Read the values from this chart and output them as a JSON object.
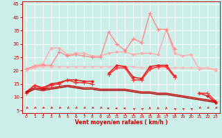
{
  "xlabel": "Vent moyen/en rafales ( km/h )",
  "background_color": "#cceee8",
  "grid_color": "#ffffff",
  "xlim": [
    -0.5,
    23.5
  ],
  "ylim": [
    4,
    46
  ],
  "yticks": [
    5,
    10,
    15,
    20,
    25,
    30,
    35,
    40,
    45
  ],
  "xticks": [
    0,
    1,
    2,
    3,
    4,
    5,
    6,
    7,
    8,
    9,
    10,
    11,
    12,
    13,
    14,
    15,
    16,
    17,
    18,
    19,
    20,
    21,
    22,
    23
  ],
  "series": [
    {
      "name": "rafales_light",
      "color": "#ffaaaa",
      "lw": 1.0,
      "marker": "D",
      "ms": 2.0,
      "y": [
        20.5,
        22.0,
        22.5,
        28.5,
        28.5,
        26.0,
        26.5,
        26.5,
        25.5,
        25.5,
        26.5,
        27.0,
        27.0,
        26.0,
        26.5,
        26.5,
        26.0,
        35.5,
        26.5,
        25.5,
        26.0,
        20.5,
        21.0,
        20.0
      ]
    },
    {
      "name": "rafales_medium",
      "color": "#ff8888",
      "lw": 1.0,
      "marker": "+",
      "ms": 4.0,
      "y": [
        20.5,
        21.5,
        22.0,
        22.0,
        27.0,
        25.5,
        26.0,
        25.5,
        25.0,
        25.0,
        34.5,
        30.0,
        27.5,
        32.0,
        30.5,
        41.5,
        35.5,
        35.5,
        28.0,
        null,
        null,
        null,
        null,
        null
      ]
    },
    {
      "name": "moyen_flat_light",
      "color": "#ffbbbb",
      "lw": 1.0,
      "marker": "D",
      "ms": 2.0,
      "y": [
        20.0,
        21.0,
        21.5,
        21.5,
        21.5,
        21.5,
        21.5,
        21.5,
        21.5,
        21.5,
        21.5,
        21.5,
        21.5,
        21.5,
        21.0,
        21.0,
        21.0,
        21.0,
        21.0,
        21.0,
        21.0,
        21.0,
        21.0,
        20.5
      ]
    },
    {
      "name": "rafales_dark",
      "color": "#dd2222",
      "lw": 1.2,
      "marker": "D",
      "ms": 2.0,
      "y": [
        12.0,
        14.5,
        13.5,
        15.0,
        15.5,
        16.5,
        16.5,
        16.0,
        16.0,
        null,
        19.0,
        22.0,
        21.5,
        17.5,
        17.0,
        21.5,
        22.0,
        22.0,
        18.0,
        null,
        null,
        11.5,
        10.5,
        8.0
      ]
    },
    {
      "name": "moyen_dark",
      "color": "#ff3333",
      "lw": 1.2,
      "marker": "+",
      "ms": 4.0,
      "y": [
        11.5,
        14.5,
        13.0,
        14.5,
        15.0,
        16.5,
        15.5,
        15.5,
        15.0,
        null,
        18.5,
        21.0,
        21.0,
        16.5,
        16.5,
        20.5,
        21.5,
        21.5,
        17.5,
        null,
        null,
        11.5,
        11.5,
        8.5
      ]
    },
    {
      "name": "avg_line1",
      "color": "#cc0000",
      "lw": 1.0,
      "marker": null,
      "ms": 0,
      "y": [
        12.0,
        13.5,
        13.0,
        13.5,
        14.0,
        14.5,
        14.0,
        13.5,
        13.5,
        13.0,
        13.0,
        13.0,
        13.0,
        12.5,
        12.0,
        12.0,
        11.5,
        11.5,
        11.0,
        10.5,
        10.0,
        9.5,
        9.0,
        8.5
      ]
    },
    {
      "name": "avg_line2",
      "color": "#aa0000",
      "lw": 1.0,
      "marker": null,
      "ms": 0,
      "y": [
        11.5,
        13.0,
        12.5,
        13.0,
        13.5,
        14.0,
        13.5,
        13.0,
        13.0,
        12.5,
        12.5,
        12.5,
        12.5,
        12.0,
        11.5,
        11.5,
        11.0,
        11.0,
        10.5,
        10.0,
        9.5,
        9.0,
        8.5,
        8.0
      ]
    }
  ],
  "arrow_angles": [
    225,
    225,
    225,
    225,
    225,
    225,
    225,
    225,
    225,
    225,
    270,
    270,
    270,
    315,
    315,
    0,
    0,
    0,
    315,
    315,
    315,
    225,
    225,
    225
  ],
  "arrow_color": "#cc0000",
  "tick_color": "#cc0000",
  "xlabel_color": "#cc0000"
}
